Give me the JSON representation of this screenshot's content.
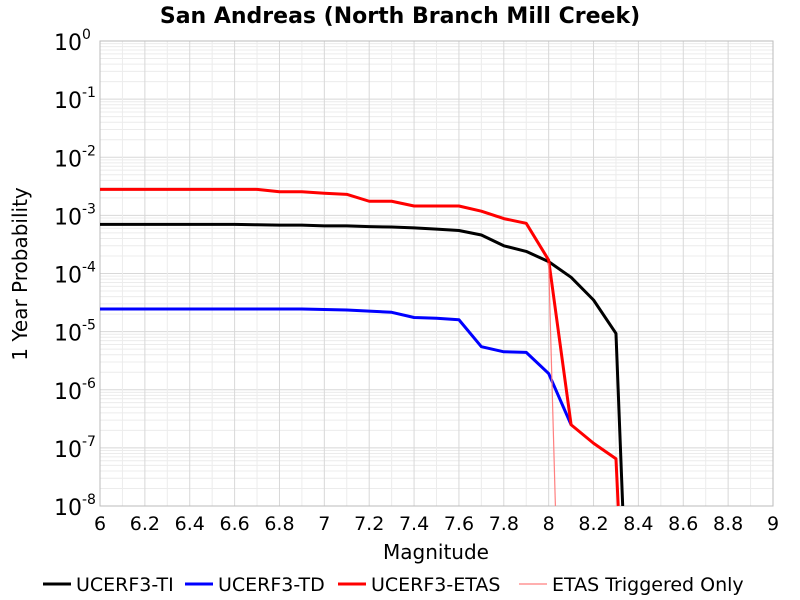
{
  "chart_data": {
    "type": "line",
    "title": "San Andreas (North Branch Mill Creek)",
    "xlabel": "Magnitude",
    "ylabel": "1 Year Probability",
    "xlim": [
      6,
      9
    ],
    "ylim_log10": [
      -8,
      0
    ],
    "y_scale": "log",
    "grid": true,
    "legend_position": "bottom",
    "x_ticks": [
      "6",
      "6.2",
      "6.4",
      "6.6",
      "6.8",
      "7",
      "7.2",
      "7.4",
      "7.6",
      "7.8",
      "8",
      "8.2",
      "8.4",
      "8.6",
      "8.8",
      "9"
    ],
    "y_ticks": [
      {
        "base": "10",
        "exp": "0"
      },
      {
        "base": "10",
        "exp": "-1"
      },
      {
        "base": "10",
        "exp": "-2"
      },
      {
        "base": "10",
        "exp": "-3"
      },
      {
        "base": "10",
        "exp": "-4"
      },
      {
        "base": "10",
        "exp": "-5"
      },
      {
        "base": "10",
        "exp": "-6"
      },
      {
        "base": "10",
        "exp": "-7"
      },
      {
        "base": "10",
        "exp": "-8"
      }
    ],
    "series": [
      {
        "name": "UCERF3-TI",
        "color": "#000000",
        "width": 3,
        "points": [
          [
            6.0,
            0.0007
          ],
          [
            6.1,
            0.0007
          ],
          [
            6.2,
            0.0007
          ],
          [
            6.3,
            0.0007
          ],
          [
            6.4,
            0.0007
          ],
          [
            6.5,
            0.0007
          ],
          [
            6.6,
            0.0007
          ],
          [
            6.7,
            0.00069
          ],
          [
            6.8,
            0.00068
          ],
          [
            6.9,
            0.00068
          ],
          [
            7.0,
            0.00066
          ],
          [
            7.1,
            0.00066
          ],
          [
            7.2,
            0.00064
          ],
          [
            7.3,
            0.00063
          ],
          [
            7.4,
            0.00061
          ],
          [
            7.5,
            0.00058
          ],
          [
            7.6,
            0.00055
          ],
          [
            7.7,
            0.00046
          ],
          [
            7.8,
            0.0003
          ],
          [
            7.9,
            0.00024
          ],
          [
            8.0,
            0.00016
          ],
          [
            8.1,
            8.6e-05
          ],
          [
            8.2,
            3.5e-05
          ],
          [
            8.3,
            9.3e-06
          ],
          [
            8.33,
            1e-08
          ]
        ]
      },
      {
        "name": "UCERF3-TD",
        "color": "#0000ff",
        "width": 3,
        "points": [
          [
            6.0,
            2.45e-05
          ],
          [
            6.1,
            2.45e-05
          ],
          [
            6.2,
            2.45e-05
          ],
          [
            6.3,
            2.45e-05
          ],
          [
            6.4,
            2.45e-05
          ],
          [
            6.5,
            2.45e-05
          ],
          [
            6.6,
            2.45e-05
          ],
          [
            6.7,
            2.45e-05
          ],
          [
            6.8,
            2.45e-05
          ],
          [
            6.9,
            2.45e-05
          ],
          [
            7.0,
            2.4e-05
          ],
          [
            7.1,
            2.35e-05
          ],
          [
            7.2,
            2.25e-05
          ],
          [
            7.3,
            2.15e-05
          ],
          [
            7.4,
            1.75e-05
          ],
          [
            7.5,
            1.7e-05
          ],
          [
            7.6,
            1.6e-05
          ],
          [
            7.7,
            5.5e-06
          ],
          [
            7.8,
            4.5e-06
          ],
          [
            7.9,
            4.4e-06
          ],
          [
            8.0,
            1.9e-06
          ],
          [
            8.1,
            2.5e-07
          ]
        ]
      },
      {
        "name": "UCERF3-ETAS",
        "color": "#ff0000",
        "width": 3,
        "points": [
          [
            6.0,
            0.0028
          ],
          [
            6.1,
            0.0028
          ],
          [
            6.2,
            0.0028
          ],
          [
            6.3,
            0.0028
          ],
          [
            6.4,
            0.0028
          ],
          [
            6.5,
            0.0028
          ],
          [
            6.6,
            0.0028
          ],
          [
            6.7,
            0.0028
          ],
          [
            6.8,
            0.00255
          ],
          [
            6.9,
            0.00255
          ],
          [
            7.0,
            0.0024
          ],
          [
            7.1,
            0.0023
          ],
          [
            7.2,
            0.00175
          ],
          [
            7.3,
            0.00175
          ],
          [
            7.4,
            0.00145
          ],
          [
            7.5,
            0.00145
          ],
          [
            7.6,
            0.00145
          ],
          [
            7.7,
            0.00118
          ],
          [
            7.8,
            0.00088
          ],
          [
            7.9,
            0.00073
          ],
          [
            8.0,
            0.00017
          ],
          [
            8.1,
            2.5e-07
          ],
          [
            8.2,
            1.2e-07
          ],
          [
            8.3,
            6.5e-08
          ],
          [
            8.31,
            1e-08
          ]
        ]
      },
      {
        "name": "ETAS Triggered Only",
        "color": "#ff7f7f",
        "width": 1.2,
        "points": [
          [
            8.0,
            0.00015
          ],
          [
            8.03,
            1e-08
          ]
        ]
      }
    ]
  }
}
